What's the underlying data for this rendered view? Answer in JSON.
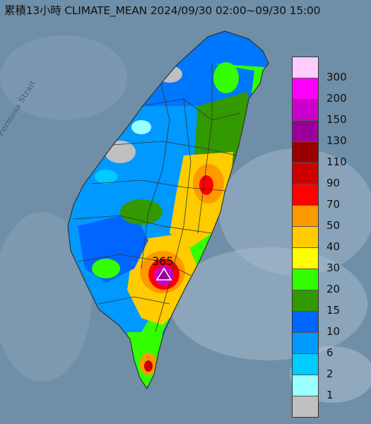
{
  "title": "累積13小時 CLIMATE_MEAN 2024/09/30 02:00~09/30 15:00",
  "strait_label": "Formosa Strait",
  "max_station": {
    "value": "365",
    "icon": "triangle-icon"
  },
  "legend": {
    "unit_values": [
      "300",
      "200",
      "150",
      "130",
      "110",
      "90",
      "70",
      "50",
      "40",
      "30",
      "20",
      "15",
      "10",
      "6",
      "2",
      "1"
    ],
    "colors": [
      "#ffccff",
      "#ff00ff",
      "#cc00cc",
      "#990099",
      "#990000",
      "#cc0000",
      "#ff0000",
      "#ff9900",
      "#ffcc00",
      "#ffff00",
      "#33ff00",
      "#339900",
      "#0066ff",
      "#0099ff",
      "#00ccff",
      "#99ffff",
      "#c0c0c0"
    ]
  },
  "map_colors": {
    "sea": "#6f8fa8",
    "land_grey": "#c0c0c0",
    "boundary": "#333333"
  }
}
